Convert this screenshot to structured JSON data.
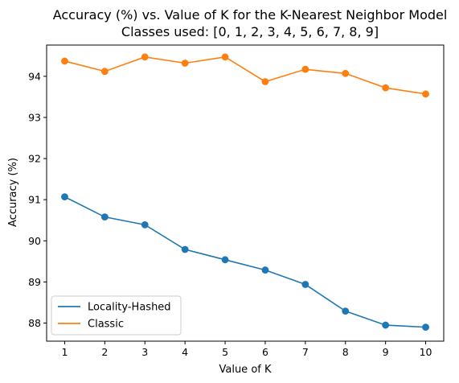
{
  "chart_data": {
    "type": "line",
    "title": "Accuracy (%) vs. Value of K for the K-Nearest Neighbor Model",
    "subtitle": "Classes used: [0, 1, 2, 3, 4, 5, 6, 7, 8, 9]",
    "xlabel": "Value of K",
    "ylabel": "Accuracy (%)",
    "x": [
      1,
      2,
      3,
      4,
      5,
      6,
      7,
      8,
      9,
      10
    ],
    "xlim": [
      0.55,
      10.45
    ],
    "ylim": [
      87.56,
      94.76
    ],
    "xticks": [
      "1",
      "2",
      "3",
      "4",
      "5",
      "6",
      "7",
      "8",
      "9",
      "10"
    ],
    "yticks": [
      88,
      89,
      90,
      91,
      92,
      93,
      94
    ],
    "ytick_labels": [
      "88",
      "89",
      "90",
      "91",
      "92",
      "93",
      "94"
    ],
    "grid": false,
    "legend_position": "lower-left",
    "series": [
      {
        "name": "Locality-Hashed",
        "color": "#1f77b4",
        "values": [
          91.07,
          90.58,
          90.39,
          89.79,
          89.54,
          89.29,
          88.94,
          88.29,
          87.95,
          87.9
        ]
      },
      {
        "name": "Classic",
        "color": "#ff7f0e",
        "values": [
          94.37,
          94.12,
          94.47,
          94.32,
          94.47,
          93.87,
          94.17,
          94.07,
          93.72,
          93.57
        ]
      }
    ]
  }
}
